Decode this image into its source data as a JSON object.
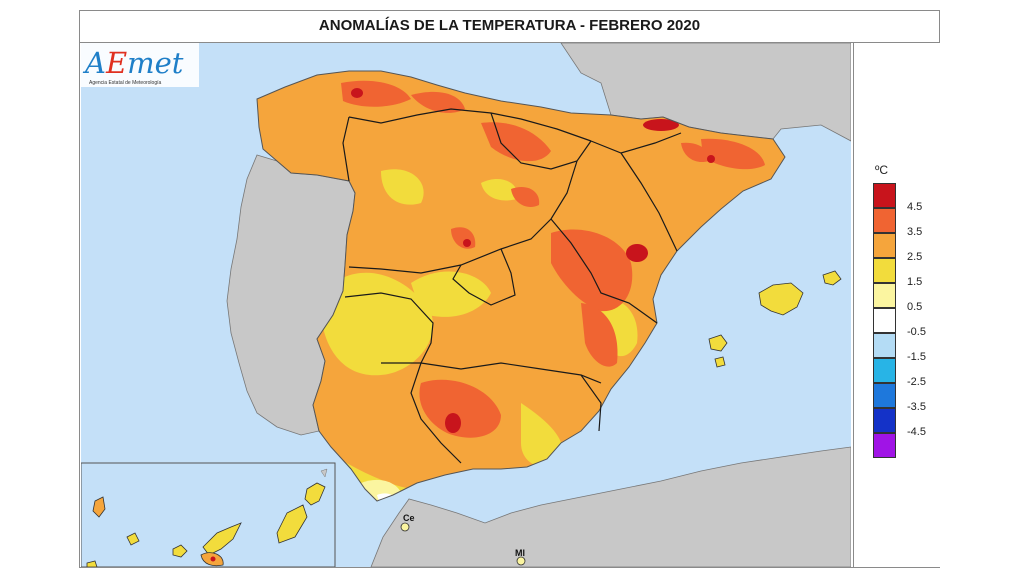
{
  "map": {
    "title": "ANOMALÍAS DE LA TEMPERATURA - FEBRERO 2020",
    "places": {
      "ceuta": "Ce",
      "melilla": "Ml"
    }
  },
  "legend": {
    "unit": "ºC",
    "items": [
      {
        "label": "4.5",
        "color": "#c8141c"
      },
      {
        "label": "3.5",
        "color": "#f06432"
      },
      {
        "label": "2.5",
        "color": "#f5a53c"
      },
      {
        "label": "1.5",
        "color": "#f2dc3c"
      },
      {
        "label": "0.5",
        "color": "#fbf5a0"
      },
      {
        "label": "-0.5",
        "color": "#ffffff"
      },
      {
        "label": "-1.5",
        "color": "#b4dcf5"
      },
      {
        "label": "-2.5",
        "color": "#28b4e6"
      },
      {
        "label": "-3.5",
        "color": "#1e78dc"
      },
      {
        "label": "-4.5",
        "color": "#1432c8"
      },
      {
        "label": "",
        "color": "#a014e6"
      }
    ]
  },
  "logo": {
    "letter1": "A",
    "letter2": "E",
    "rest": "met",
    "subtitle": "Agencia Estatal de Meteorología"
  },
  "colors": {
    "sea": "#c4e0f8",
    "foreign_land": "#c8c8c8",
    "base": "#f5a53c"
  }
}
